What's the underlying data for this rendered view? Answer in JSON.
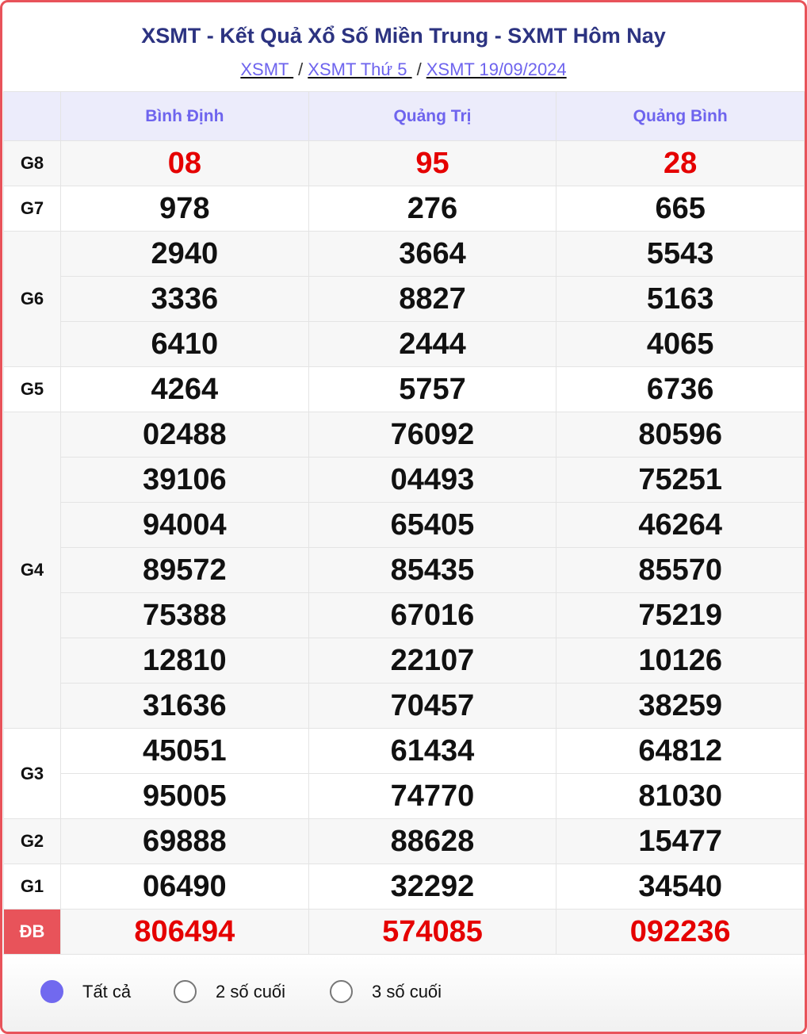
{
  "title": "XSMT - Kết Quả Xổ Số Miền Trung - SXMT Hôm Nay",
  "breadcrumb": [
    "XSMT ",
    "XSMT Thứ 5 ",
    "XSMT 19/09/2024"
  ],
  "breadcrumb_sep": "/",
  "provinces": [
    "Bình Định",
    "Quảng Trị",
    "Quảng Bình"
  ],
  "prizes": [
    {
      "label": "G8",
      "rows": [
        [
          "08",
          "95",
          "28"
        ]
      ],
      "highlight": true
    },
    {
      "label": "G7",
      "rows": [
        [
          "978",
          "276",
          "665"
        ]
      ]
    },
    {
      "label": "G6",
      "rows": [
        [
          "2940",
          "3664",
          "5543"
        ],
        [
          "3336",
          "8827",
          "5163"
        ],
        [
          "6410",
          "2444",
          "4065"
        ]
      ]
    },
    {
      "label": "G5",
      "rows": [
        [
          "4264",
          "5757",
          "6736"
        ]
      ]
    },
    {
      "label": "G4",
      "rows": [
        [
          "02488",
          "76092",
          "80596"
        ],
        [
          "39106",
          "04493",
          "75251"
        ],
        [
          "94004",
          "65405",
          "46264"
        ],
        [
          "89572",
          "85435",
          "85570"
        ],
        [
          "75388",
          "67016",
          "75219"
        ],
        [
          "12810",
          "22107",
          "10126"
        ],
        [
          "31636",
          "70457",
          "38259"
        ]
      ]
    },
    {
      "label": "G3",
      "rows": [
        [
          "45051",
          "61434",
          "64812"
        ],
        [
          "95005",
          "74770",
          "81030"
        ]
      ]
    },
    {
      "label": "G2",
      "rows": [
        [
          "69888",
          "88628",
          "15477"
        ]
      ]
    },
    {
      "label": "G1",
      "rows": [
        [
          "06490",
          "32292",
          "34540"
        ]
      ]
    },
    {
      "label": "ĐB",
      "rows": [
        [
          "806494",
          "574085",
          "092236"
        ]
      ],
      "highlight": true,
      "special": true
    }
  ],
  "filters": [
    {
      "label": "Tất cả",
      "selected": true
    },
    {
      "label": "2 số cuối",
      "selected": false
    },
    {
      "label": "3 số cuối",
      "selected": false
    }
  ],
  "colors": {
    "accent": "#6e64ee",
    "title": "#2c3381",
    "red": "#e50000",
    "border": "#e8535a"
  }
}
